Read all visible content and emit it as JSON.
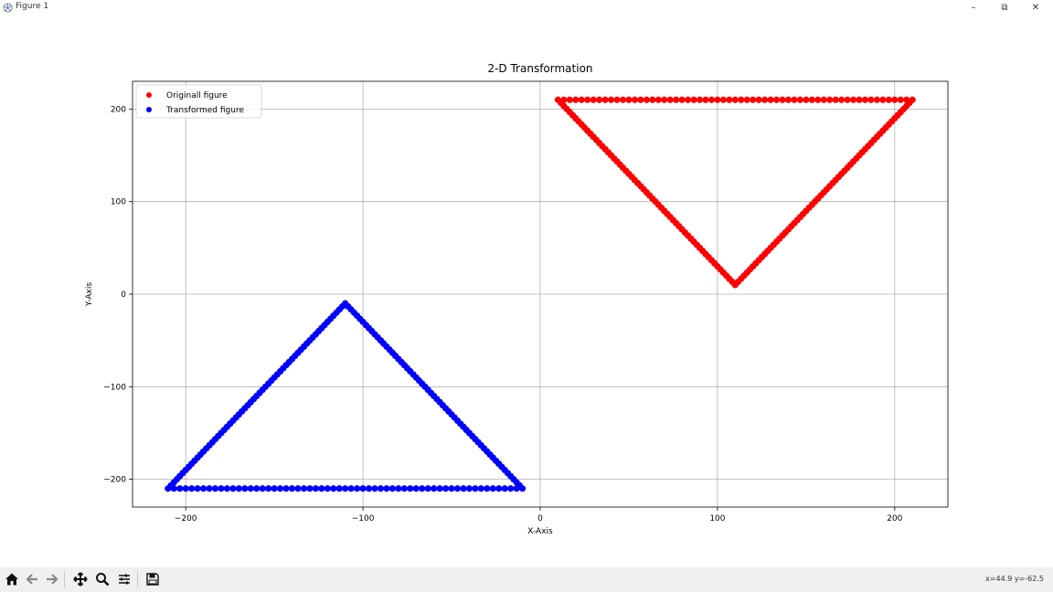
{
  "window": {
    "title": "Figure 1",
    "minimize": "–",
    "restore": "⧉",
    "close": "✕"
  },
  "toolbar": {
    "icons": [
      "home-icon",
      "back-icon",
      "forward-icon",
      "pan-icon",
      "zoom-icon",
      "configure-subplots-icon",
      "save-icon"
    ],
    "coords": "x=44.9 y=-62.5"
  },
  "colors": {
    "original": "#ff0000",
    "transformed": "#0000ff"
  },
  "chart_data": {
    "type": "scatter",
    "title": "2-D Transformation",
    "xlabel": "X-Axis",
    "ylabel": "Y-Axis",
    "xlim": [
      -230,
      230
    ],
    "ylim": [
      -230,
      230
    ],
    "xticks": [
      -200,
      -100,
      0,
      100,
      200
    ],
    "yticks": [
      -200,
      -100,
      0,
      100,
      200
    ],
    "xtick_labels": [
      "−200",
      "−100",
      "0",
      "100",
      "200"
    ],
    "ytick_labels": [
      "−200",
      "−100",
      "0",
      "100",
      "200"
    ],
    "grid": true,
    "legend": "top-left",
    "series": [
      {
        "name": "Originall figure",
        "color": "#ff0000",
        "vertices": [
          [
            10,
            210
          ],
          [
            210,
            210
          ],
          [
            110,
            10
          ]
        ]
      },
      {
        "name": "Transformed figure",
        "color": "#0000ff",
        "vertices": [
          [
            -10,
            -210
          ],
          [
            -210,
            -210
          ],
          [
            -110,
            -10
          ]
        ]
      }
    ]
  }
}
